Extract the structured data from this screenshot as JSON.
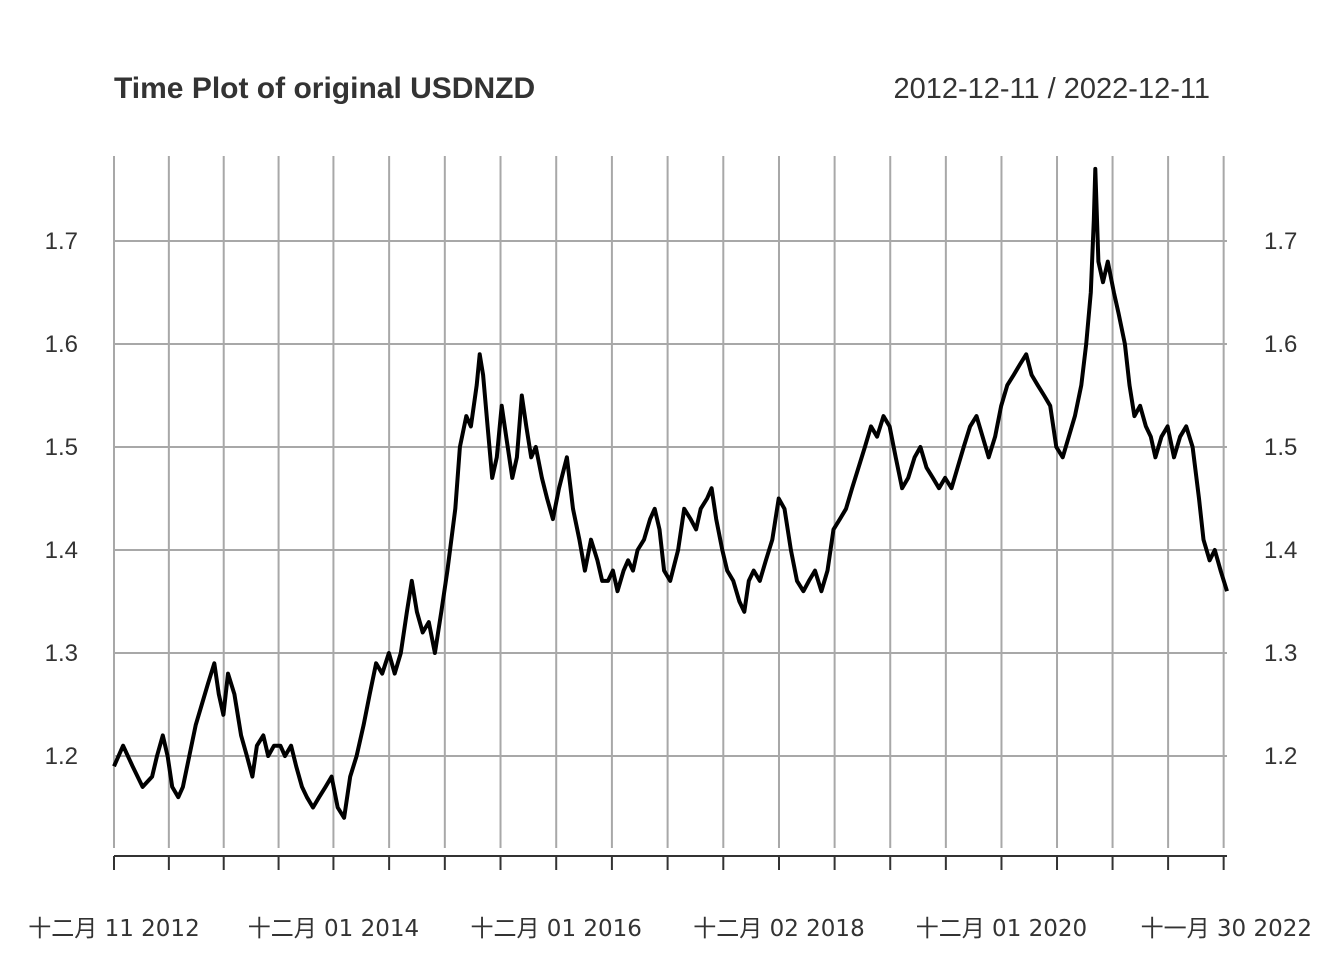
{
  "chart_data": {
    "type": "line",
    "title": "Time Plot of original USDNZD",
    "date_range_label": "2012-12-11 / 2022-12-11",
    "xlabel": "",
    "ylabel": "",
    "ylim": [
      1.11,
      1.79
    ],
    "y_ticks": [
      1.2,
      1.3,
      1.4,
      1.5,
      1.6,
      1.7
    ],
    "y_tick_labels": [
      "1.2",
      "1.3",
      "1.4",
      "1.5",
      "1.6",
      "1.7"
    ],
    "x_ticks": [
      {
        "date": "2012-12-11",
        "label": "十二月 11 2012"
      },
      {
        "date": "2014-12-01",
        "label": "十二月 01 2014"
      },
      {
        "date": "2016-12-01",
        "label": "十二月 01 2016"
      },
      {
        "date": "2018-12-02",
        "label": "十二月 02 2018"
      },
      {
        "date": "2020-12-01",
        "label": "十二月 01 2020"
      },
      {
        "date": "2022-11-30",
        "label": "十一月 30 2022"
      }
    ],
    "grid": true,
    "line_color": "#000000",
    "grid_color": "#a8a8a8",
    "series": [
      {
        "points": [
          [
            "2012-12-11",
            1.19
          ],
          [
            "2013-01-10",
            1.21
          ],
          [
            "2013-02-10",
            1.19
          ],
          [
            "2013-03-15",
            1.17
          ],
          [
            "2013-04-15",
            1.18
          ],
          [
            "2013-05-01",
            1.2
          ],
          [
            "2013-05-20",
            1.22
          ],
          [
            "2013-06-05",
            1.2
          ],
          [
            "2013-06-20",
            1.17
          ],
          [
            "2013-07-10",
            1.16
          ],
          [
            "2013-07-25",
            1.17
          ],
          [
            "2013-08-15",
            1.2
          ],
          [
            "2013-09-05",
            1.23
          ],
          [
            "2013-09-25",
            1.25
          ],
          [
            "2013-10-15",
            1.27
          ],
          [
            "2013-11-05",
            1.29
          ],
          [
            "2013-11-20",
            1.26
          ],
          [
            "2013-12-05",
            1.24
          ],
          [
            "2013-12-20",
            1.28
          ],
          [
            "2014-01-10",
            1.26
          ],
          [
            "2014-02-01",
            1.22
          ],
          [
            "2014-02-20",
            1.2
          ],
          [
            "2014-03-10",
            1.18
          ],
          [
            "2014-03-25",
            1.21
          ],
          [
            "2014-04-15",
            1.22
          ],
          [
            "2014-05-01",
            1.2
          ],
          [
            "2014-05-20",
            1.21
          ],
          [
            "2014-06-10",
            1.21
          ],
          [
            "2014-06-25",
            1.2
          ],
          [
            "2014-07-15",
            1.21
          ],
          [
            "2014-08-01",
            1.19
          ],
          [
            "2014-08-20",
            1.17
          ],
          [
            "2014-09-05",
            1.16
          ],
          [
            "2014-09-25",
            1.15
          ],
          [
            "2014-10-15",
            1.16
          ],
          [
            "2014-11-05",
            1.17
          ],
          [
            "2014-11-25",
            1.18
          ],
          [
            "2014-12-15",
            1.15
          ],
          [
            "2015-01-05",
            1.14
          ],
          [
            "2015-01-25",
            1.18
          ],
          [
            "2015-02-15",
            1.2
          ],
          [
            "2015-03-10",
            1.23
          ],
          [
            "2015-03-30",
            1.26
          ],
          [
            "2015-04-20",
            1.29
          ],
          [
            "2015-05-10",
            1.28
          ],
          [
            "2015-06-01",
            1.3
          ],
          [
            "2015-06-20",
            1.28
          ],
          [
            "2015-07-10",
            1.3
          ],
          [
            "2015-07-30",
            1.34
          ],
          [
            "2015-08-15",
            1.37
          ],
          [
            "2015-09-01",
            1.34
          ],
          [
            "2015-09-20",
            1.32
          ],
          [
            "2015-10-10",
            1.33
          ],
          [
            "2015-10-30",
            1.3
          ],
          [
            "2015-11-20",
            1.34
          ],
          [
            "2015-12-10",
            1.38
          ],
          [
            "2016-01-05",
            1.44
          ],
          [
            "2016-01-20",
            1.5
          ],
          [
            "2016-02-10",
            1.53
          ],
          [
            "2016-02-25",
            1.52
          ],
          [
            "2016-03-15",
            1.56
          ],
          [
            "2016-03-25",
            1.59
          ],
          [
            "2016-04-05",
            1.57
          ],
          [
            "2016-04-20",
            1.52
          ],
          [
            "2016-05-05",
            1.47
          ],
          [
            "2016-05-20",
            1.49
          ],
          [
            "2016-06-05",
            1.54
          ],
          [
            "2016-06-20",
            1.51
          ],
          [
            "2016-07-10",
            1.47
          ],
          [
            "2016-07-25",
            1.49
          ],
          [
            "2016-08-10",
            1.55
          ],
          [
            "2016-08-25",
            1.52
          ],
          [
            "2016-09-10",
            1.49
          ],
          [
            "2016-09-25",
            1.5
          ],
          [
            "2016-10-15",
            1.47
          ],
          [
            "2016-11-01",
            1.45
          ],
          [
            "2016-11-20",
            1.43
          ],
          [
            "2016-12-10",
            1.46
          ],
          [
            "2017-01-05",
            1.49
          ],
          [
            "2017-01-25",
            1.44
          ],
          [
            "2017-02-15",
            1.41
          ],
          [
            "2017-03-05",
            1.38
          ],
          [
            "2017-03-25",
            1.41
          ],
          [
            "2017-04-15",
            1.39
          ],
          [
            "2017-05-01",
            1.37
          ],
          [
            "2017-05-20",
            1.37
          ],
          [
            "2017-06-05",
            1.38
          ],
          [
            "2017-06-20",
            1.36
          ],
          [
            "2017-07-10",
            1.38
          ],
          [
            "2017-07-25",
            1.39
          ],
          [
            "2017-08-10",
            1.38
          ],
          [
            "2017-08-25",
            1.4
          ],
          [
            "2017-09-15",
            1.41
          ],
          [
            "2017-10-05",
            1.43
          ],
          [
            "2017-10-20",
            1.44
          ],
          [
            "2017-11-05",
            1.42
          ],
          [
            "2017-11-20",
            1.38
          ],
          [
            "2017-12-10",
            1.37
          ],
          [
            "2018-01-05",
            1.4
          ],
          [
            "2018-01-25",
            1.44
          ],
          [
            "2018-02-15",
            1.43
          ],
          [
            "2018-03-05",
            1.42
          ],
          [
            "2018-03-20",
            1.44
          ],
          [
            "2018-04-10",
            1.45
          ],
          [
            "2018-04-25",
            1.46
          ],
          [
            "2018-05-10",
            1.43
          ],
          [
            "2018-05-30",
            1.4
          ],
          [
            "2018-06-15",
            1.38
          ],
          [
            "2018-07-05",
            1.37
          ],
          [
            "2018-07-25",
            1.35
          ],
          [
            "2018-08-10",
            1.34
          ],
          [
            "2018-08-25",
            1.37
          ],
          [
            "2018-09-10",
            1.38
          ],
          [
            "2018-09-30",
            1.37
          ],
          [
            "2018-10-20",
            1.39
          ],
          [
            "2018-11-10",
            1.41
          ],
          [
            "2018-12-01",
            1.45
          ],
          [
            "2018-12-20",
            1.44
          ],
          [
            "2019-01-10",
            1.4
          ],
          [
            "2019-01-30",
            1.37
          ],
          [
            "2019-02-20",
            1.36
          ],
          [
            "2019-03-10",
            1.37
          ],
          [
            "2019-03-30",
            1.38
          ],
          [
            "2019-04-20",
            1.36
          ],
          [
            "2019-05-10",
            1.38
          ],
          [
            "2019-05-30",
            1.42
          ],
          [
            "2019-06-20",
            1.43
          ],
          [
            "2019-07-10",
            1.44
          ],
          [
            "2019-07-30",
            1.46
          ],
          [
            "2019-08-20",
            1.48
          ],
          [
            "2019-09-10",
            1.5
          ],
          [
            "2019-09-30",
            1.52
          ],
          [
            "2019-10-20",
            1.51
          ],
          [
            "2019-11-10",
            1.53
          ],
          [
            "2019-11-30",
            1.52
          ],
          [
            "2019-12-20",
            1.49
          ],
          [
            "2020-01-10",
            1.46
          ],
          [
            "2020-01-30",
            1.47
          ],
          [
            "2020-02-20",
            1.49
          ],
          [
            "2020-03-10",
            1.5
          ],
          [
            "2020-03-30",
            1.48
          ],
          [
            "2020-04-20",
            1.47
          ],
          [
            "2020-05-10",
            1.46
          ],
          [
            "2020-05-30",
            1.47
          ],
          [
            "2020-06-20",
            1.46
          ],
          [
            "2020-07-10",
            1.48
          ],
          [
            "2020-07-30",
            1.5
          ],
          [
            "2020-08-20",
            1.52
          ],
          [
            "2020-09-10",
            1.53
          ],
          [
            "2020-09-30",
            1.51
          ],
          [
            "2020-10-20",
            1.49
          ],
          [
            "2020-11-10",
            1.51
          ],
          [
            "2020-11-30",
            1.54
          ],
          [
            "2020-12-20",
            1.56
          ],
          [
            "2021-01-10",
            1.57
          ],
          [
            "2021-01-30",
            1.58
          ],
          [
            "2021-02-20",
            1.59
          ],
          [
            "2021-03-10",
            1.57
          ],
          [
            "2021-03-30",
            1.56
          ],
          [
            "2021-04-20",
            1.55
          ],
          [
            "2021-05-10",
            1.54
          ],
          [
            "2021-05-30",
            1.5
          ],
          [
            "2021-06-20",
            1.49
          ],
          [
            "2021-07-10",
            1.51
          ],
          [
            "2021-07-30",
            1.53
          ],
          [
            "2021-08-20",
            1.56
          ],
          [
            "2021-09-05",
            1.6
          ],
          [
            "2021-09-20",
            1.65
          ],
          [
            "2021-09-30",
            1.72
          ],
          [
            "2021-10-05",
            1.77
          ],
          [
            "2021-10-15",
            1.68
          ],
          [
            "2021-10-30",
            1.66
          ],
          [
            "2021-11-15",
            1.68
          ],
          [
            "2021-12-05",
            1.65
          ],
          [
            "2021-12-20",
            1.63
          ],
          [
            "2022-01-10",
            1.6
          ],
          [
            "2022-01-25",
            1.56
          ],
          [
            "2022-02-10",
            1.53
          ],
          [
            "2022-03-01",
            1.54
          ],
          [
            "2022-03-20",
            1.52
          ],
          [
            "2022-04-05",
            1.51
          ],
          [
            "2022-04-20",
            1.49
          ],
          [
            "2022-05-10",
            1.51
          ],
          [
            "2022-05-30",
            1.52
          ],
          [
            "2022-06-20",
            1.49
          ],
          [
            "2022-07-10",
            1.51
          ],
          [
            "2022-07-30",
            1.52
          ],
          [
            "2022-08-20",
            1.5
          ],
          [
            "2022-09-10",
            1.45
          ],
          [
            "2022-09-25",
            1.41
          ],
          [
            "2022-10-15",
            1.39
          ],
          [
            "2022-11-01",
            1.4
          ],
          [
            "2022-11-20",
            1.38
          ],
          [
            "2022-12-11",
            1.36
          ]
        ]
      }
    ]
  }
}
